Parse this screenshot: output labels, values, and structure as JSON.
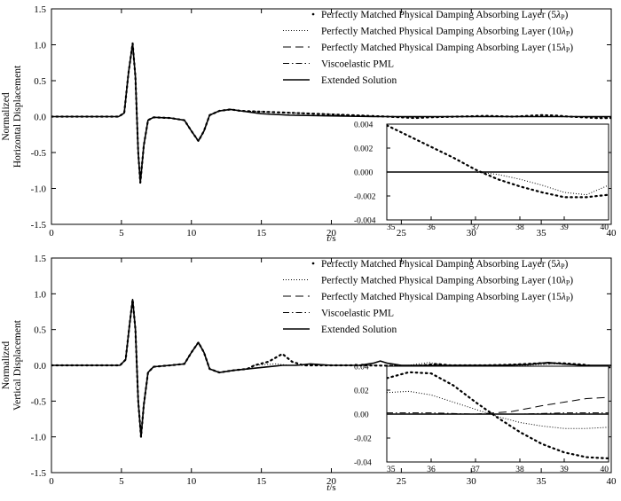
{
  "chart_data": [
    {
      "type": "line",
      "title": "",
      "ylabel_lines": [
        "Normalized",
        "Horizontal Displacement"
      ],
      "xlabel": "t/s",
      "xlabel_italic": "t",
      "xlabel_rest": "/s",
      "xlim": [
        0,
        40
      ],
      "ylim": [
        -1.5,
        1.5
      ],
      "xticks": [
        0,
        5,
        10,
        15,
        20,
        25,
        30,
        35,
        40
      ],
      "yticks": [
        -1.5,
        -1.0,
        -0.5,
        0.0,
        0.5,
        1.0,
        1.5
      ],
      "ytick_labels": [
        "-1.5",
        "-1.0",
        "-0.5",
        "0.0",
        "0.5",
        "1.0",
        "1.5"
      ],
      "legend": [
        {
          "name": "Perfectly Matched Physical Damping Absorbing Layer (5λP)",
          "text": "Perfectly Matched Physical Damping Absorbing Layer (5",
          "lam": "λ",
          "sub": "P",
          "close": ")",
          "style": "sparse-dot"
        },
        {
          "name": "Perfectly Matched Physical Damping Absorbing Layer (10λP)",
          "text": "Perfectly Matched Physical Damping Absorbing Layer (10",
          "lam": "λ",
          "sub": "P",
          "close": ")",
          "style": "dotted"
        },
        {
          "name": "Perfectly Matched Physical Damping Absorbing Layer (15λP)",
          "text": "Perfectly Matched Physical Damping Absorbing Layer (15",
          "lam": "λ",
          "sub": "P",
          "close": ")",
          "style": "dashed"
        },
        {
          "name": "Viscoelastic PML",
          "text": "Viscoelastic PML",
          "style": "dashdot"
        },
        {
          "name": "Extended Solution",
          "text": "Extended Solution",
          "style": "solid"
        }
      ],
      "main_wave": [
        [
          0,
          0
        ],
        [
          4.8,
          0
        ],
        [
          5.2,
          0.05
        ],
        [
          5.5,
          0.6
        ],
        [
          5.8,
          1.02
        ],
        [
          6.0,
          0.55
        ],
        [
          6.2,
          -0.5
        ],
        [
          6.35,
          -0.92
        ],
        [
          6.6,
          -0.4
        ],
        [
          6.9,
          -0.05
        ],
        [
          7.3,
          -0.01
        ],
        [
          8.5,
          -0.02
        ],
        [
          9.5,
          -0.05
        ],
        [
          10.0,
          -0.2
        ],
        [
          10.5,
          -0.34
        ],
        [
          10.9,
          -0.2
        ],
        [
          11.3,
          0.02
        ],
        [
          12.0,
          0.08
        ],
        [
          12.8,
          0.1
        ],
        [
          13.5,
          0.08
        ],
        [
          15,
          0.04
        ],
        [
          17,
          0.02
        ],
        [
          20,
          0.01
        ],
        [
          23,
          0.0
        ],
        [
          26,
          0.0
        ],
        [
          30,
          0.0
        ],
        [
          35,
          0.0
        ],
        [
          40,
          0.0
        ]
      ],
      "late_5": [
        [
          24,
          0.0
        ],
        [
          26,
          -0.02
        ],
        [
          27,
          -0.01
        ],
        [
          29,
          0.0
        ],
        [
          31,
          0.01
        ],
        [
          33,
          0.0
        ],
        [
          35,
          0.02
        ],
        [
          36,
          0.015
        ],
        [
          37,
          0.0
        ],
        [
          38,
          -0.01
        ],
        [
          39,
          -0.02
        ],
        [
          40,
          -0.02
        ]
      ],
      "late_10": [
        [
          24,
          0.0
        ],
        [
          26,
          -0.01
        ],
        [
          28,
          0.0
        ],
        [
          32,
          0.005
        ],
        [
          36,
          0.0
        ],
        [
          38,
          -0.006
        ],
        [
          40,
          -0.01
        ]
      ],
      "inset": {
        "xlim": [
          35,
          40
        ],
        "ylim": [
          -0.004,
          0.004
        ],
        "xticks": [
          35,
          36,
          37,
          38,
          39,
          40
        ],
        "yticks": [
          -0.004,
          -0.002,
          0.0,
          0.002,
          0.004
        ],
        "ytick_labels": [
          "-0.004",
          "-0.002",
          "0.000",
          "0.002",
          "0.004"
        ],
        "series": [
          {
            "name": "Perfectly Matched Physical Damping Absorbing Layer (5λP)",
            "points": [
              [
                35,
                0.0039
              ],
              [
                35.5,
                0.003
              ],
              [
                36,
                0.0021
              ],
              [
                36.5,
                0.0012
              ],
              [
                37,
                0.0002
              ],
              [
                37.5,
                -0.0006
              ],
              [
                38,
                -0.0012
              ],
              [
                38.5,
                -0.0017
              ],
              [
                39,
                -0.0021
              ],
              [
                39.5,
                -0.0021
              ],
              [
                40,
                -0.0019
              ]
            ]
          },
          {
            "name": "Perfectly Matched Physical Damping Absorbing Layer (10λP)",
            "points": [
              [
                35,
                0.0
              ],
              [
                37,
                0.0
              ],
              [
                37.5,
                -0.0002
              ],
              [
                38,
                -0.0006
              ],
              [
                38.5,
                -0.0011
              ],
              [
                39,
                -0.0017
              ],
              [
                39.5,
                -0.0019
              ],
              [
                40,
                -0.0011
              ]
            ]
          },
          {
            "name": "Perfectly Matched Physical Damping Absorbing Layer (15λP)",
            "points": [
              [
                35,
                0.0
              ],
              [
                40,
                0.0
              ]
            ]
          },
          {
            "name": "Viscoelastic PML",
            "points": [
              [
                35,
                0.0
              ],
              [
                40,
                0.0
              ]
            ]
          },
          {
            "name": "Extended Solution",
            "points": [
              [
                35,
                0.0
              ],
              [
                40,
                0.0
              ]
            ]
          }
        ]
      }
    },
    {
      "type": "line",
      "title": "",
      "ylabel_lines": [
        "Normalized",
        "Vertical Displacement"
      ],
      "xlabel": "t/s",
      "xlabel_italic": "t",
      "xlabel_rest": "/s",
      "xlim": [
        0,
        40
      ],
      "ylim": [
        -1.5,
        1.5
      ],
      "xticks": [
        0,
        5,
        10,
        15,
        20,
        25,
        30,
        35,
        40
      ],
      "yticks": [
        -1.5,
        -1.0,
        -0.5,
        0.0,
        0.5,
        1.0,
        1.5
      ],
      "ytick_labels": [
        "-1.5",
        "-1.0",
        "-0.5",
        "0.0",
        "0.5",
        "1.0",
        "1.5"
      ],
      "legend": [
        {
          "name": "Perfectly Matched Physical Damping Absorbing Layer (5λP)",
          "text": "Perfectly Matched Physical Damping Absorbing Layer (5",
          "lam": "λ",
          "sub": "P",
          "close": ")",
          "style": "sparse-dot"
        },
        {
          "name": "Perfectly Matched Physical Damping Absorbing Layer (10λP)",
          "text": "Perfectly Matched Physical Damping Absorbing Layer (10",
          "lam": "λ",
          "sub": "P",
          "close": ")",
          "style": "dotted"
        },
        {
          "name": "Perfectly Matched Physical Damping Absorbing Layer (15λP)",
          "text": "Perfectly Matched Physical Damping Absorbing Layer (15",
          "lam": "λ",
          "sub": "P",
          "close": ")",
          "style": "dashed"
        },
        {
          "name": "Viscoelastic PML",
          "text": "Viscoelastic PML",
          "style": "dashdot"
        },
        {
          "name": "Extended Solution",
          "text": "Extended Solution",
          "style": "solid"
        }
      ],
      "main_wave": [
        [
          0,
          0
        ],
        [
          4.9,
          0
        ],
        [
          5.3,
          0.08
        ],
        [
          5.6,
          0.6
        ],
        [
          5.8,
          0.92
        ],
        [
          6.0,
          0.5
        ],
        [
          6.2,
          -0.5
        ],
        [
          6.4,
          -1.0
        ],
        [
          6.6,
          -0.55
        ],
        [
          6.9,
          -0.1
        ],
        [
          7.3,
          -0.02
        ],
        [
          8.5,
          0.0
        ],
        [
          9.5,
          0.02
        ],
        [
          10.0,
          0.18
        ],
        [
          10.5,
          0.32
        ],
        [
          10.9,
          0.18
        ],
        [
          11.3,
          -0.05
        ],
        [
          12.0,
          -0.1
        ],
        [
          13.0,
          -0.07
        ],
        [
          14.0,
          -0.05
        ],
        [
          15.0,
          -0.03
        ],
        [
          16.0,
          -0.01
        ],
        [
          16.5,
          0.0
        ],
        [
          17.5,
          0.0
        ],
        [
          18.5,
          0.02
        ],
        [
          20,
          0.0
        ],
        [
          22,
          0.0
        ],
        [
          23.0,
          0.03
        ],
        [
          23.5,
          0.06
        ],
        [
          24.0,
          0.03
        ],
        [
          25,
          0.0
        ],
        [
          28,
          0.0
        ],
        [
          30,
          0.0
        ],
        [
          32,
          0.0
        ],
        [
          34,
          0.01
        ],
        [
          35.5,
          0.04
        ],
        [
          36.5,
          0.02
        ],
        [
          38,
          0.0
        ],
        [
          40,
          0.0
        ]
      ],
      "late_5": [
        [
          14.5,
          0.0
        ],
        [
          15.5,
          0.05
        ],
        [
          16.5,
          0.16
        ],
        [
          17.2,
          0.05
        ],
        [
          18,
          0.0
        ],
        [
          22,
          0.0
        ],
        [
          26,
          -0.01
        ],
        [
          27.5,
          0.02
        ],
        [
          28.5,
          0.0
        ],
        [
          31,
          0.0
        ],
        [
          33,
          0.01
        ],
        [
          35,
          0.03
        ],
        [
          36.5,
          0.03
        ],
        [
          38,
          0.01
        ],
        [
          39,
          -0.02
        ],
        [
          40,
          -0.03
        ]
      ],
      "late_10": [
        [
          14.5,
          0.0
        ],
        [
          16,
          0.02
        ],
        [
          17,
          0.0
        ],
        [
          22,
          0.0
        ],
        [
          25.5,
          0.0
        ],
        [
          27,
          0.04
        ],
        [
          28,
          0.0
        ],
        [
          31,
          0.0
        ],
        [
          34,
          0.0
        ],
        [
          36,
          0.02
        ],
        [
          38,
          0.0
        ],
        [
          40,
          -0.01
        ]
      ],
      "inset": {
        "xlim": [
          35,
          40
        ],
        "ylim": [
          -0.04,
          0.04
        ],
        "xticks": [
          35,
          36,
          37,
          38,
          39,
          40
        ],
        "yticks": [
          -0.04,
          -0.02,
          0.0,
          0.02,
          0.04
        ],
        "ytick_labels": [
          "-0.04",
          "-0.02",
          "0.00",
          "0.02",
          "0.04"
        ],
        "series": [
          {
            "name": "Perfectly Matched Physical Damping Absorbing Layer (5λP)",
            "points": [
              [
                35,
                0.03
              ],
              [
                35.5,
                0.035
              ],
              [
                36,
                0.034
              ],
              [
                36.5,
                0.024
              ],
              [
                37,
                0.01
              ],
              [
                37.5,
                -0.003
              ],
              [
                38,
                -0.015
              ],
              [
                38.5,
                -0.025
              ],
              [
                39,
                -0.032
              ],
              [
                39.5,
                -0.036
              ],
              [
                40,
                -0.037
              ]
            ]
          },
          {
            "name": "Perfectly Matched Physical Damping Absorbing Layer (10λP)",
            "points": [
              [
                35,
                0.018
              ],
              [
                35.5,
                0.019
              ],
              [
                36,
                0.016
              ],
              [
                36.5,
                0.01
              ],
              [
                37,
                0.004
              ],
              [
                37.5,
                -0.002
              ],
              [
                38,
                -0.007
              ],
              [
                38.5,
                -0.01
              ],
              [
                39,
                -0.012
              ],
              [
                39.5,
                -0.012
              ],
              [
                40,
                -0.011
              ]
            ]
          },
          {
            "name": "Perfectly Matched Physical Damping Absorbing Layer (15λP)",
            "points": [
              [
                35,
                0.0
              ],
              [
                37,
                0.0
              ],
              [
                37.8,
                0.002
              ],
              [
                38.5,
                0.007
              ],
              [
                39,
                0.01
              ],
              [
                39.5,
                0.013
              ],
              [
                40,
                0.014
              ]
            ]
          },
          {
            "name": "Viscoelastic PML",
            "points": [
              [
                35,
                0.001
              ],
              [
                36,
                0.001
              ],
              [
                37,
                0.0
              ],
              [
                38,
                0.0
              ],
              [
                39,
                0.001
              ],
              [
                40,
                0.001
              ]
            ]
          },
          {
            "name": "Extended Solution",
            "points": [
              [
                35,
                0.0
              ],
              [
                40,
                0.0
              ]
            ]
          }
        ]
      }
    }
  ]
}
